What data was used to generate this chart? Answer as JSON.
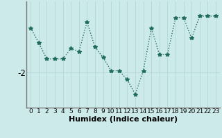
{
  "x": [
    0,
    1,
    2,
    3,
    4,
    5,
    6,
    7,
    8,
    9,
    10,
    11,
    12,
    13,
    14,
    15,
    16,
    17,
    18,
    19,
    20,
    21,
    22,
    23
  ],
  "y": [
    -0.5,
    -1.0,
    -1.55,
    -1.55,
    -1.55,
    -1.2,
    -1.3,
    -0.3,
    -1.15,
    -1.5,
    -1.95,
    -1.95,
    -2.25,
    -2.75,
    -1.95,
    -0.5,
    -1.4,
    -1.4,
    -0.15,
    -0.15,
    -0.85,
    -0.1,
    -0.1,
    -0.1
  ],
  "line_color": "#1f6b5e",
  "marker": "*",
  "markersize": 4,
  "linewidth": 1,
  "linestyle": "dotted",
  "bg_color": "#cdeaea",
  "grid_color": "#b5d8d8",
  "axis_line_color": "#777777",
  "xlabel": "Humidex (Indice chaleur)",
  "xlabel_fontsize": 8,
  "ytick_label": "-2",
  "ytick_value": -2.0,
  "ylim": [
    -3.2,
    0.4
  ],
  "xlim": [
    -0.5,
    23.5
  ],
  "xtick_fontsize": 6.5,
  "ytick_fontsize": 8.5
}
